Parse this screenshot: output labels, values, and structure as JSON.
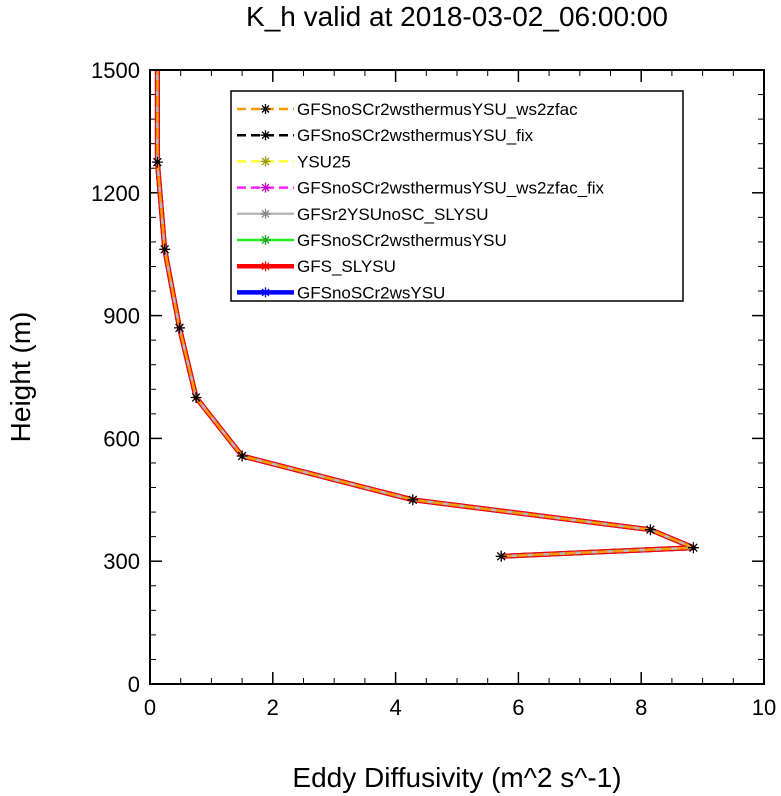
{
  "chart_data": {
    "type": "line",
    "title": "K_h valid at 2018-03-02_06:00:00",
    "xlabel": "Eddy Diffusivity (m^2 s^-1)",
    "ylabel": "Height (m)",
    "xlim": [
      0,
      10
    ],
    "ylim": [
      0,
      1500
    ],
    "xticks": [
      0,
      2,
      4,
      6,
      8,
      10
    ],
    "yticks": [
      0,
      300,
      600,
      900,
      1200,
      1500
    ],
    "xtick_labels": [
      "0",
      "2",
      "4",
      "6",
      "8",
      "10"
    ],
    "ytick_labels": [
      "0",
      "300",
      "600",
      "900",
      "1200",
      "1500"
    ],
    "legend_position": "top-right",
    "profile": {
      "x": [
        5.72,
        8.85,
        8.15,
        4.28,
        1.5,
        0.75,
        0.48,
        0.24,
        0.12,
        0.12
      ],
      "y": [
        312,
        333,
        377,
        450,
        557,
        700,
        870,
        1062,
        1275,
        1500
      ]
    },
    "series": [
      {
        "name": "GFSnoSCr2wsYSU",
        "color": "#0000ff",
        "width": 5,
        "dash": "",
        "marker_color": "#0000ff"
      },
      {
        "name": "GFS_SLYSU",
        "color": "#ff0000",
        "width": 5,
        "dash": "",
        "marker_color": "#ff0000"
      },
      {
        "name": "GFSnoSCr2wsthermusYSU",
        "color": "#22ee22",
        "width": 2.5,
        "dash": "",
        "marker_color": "#22aa22"
      },
      {
        "name": "GFSr2YSUnoSC_SLYSU",
        "color": "#bbbbbb",
        "width": 2.5,
        "dash": "",
        "marker_color": "#888888"
      },
      {
        "name": "GFSnoSCr2wsthermusYSU_ws2zfac_fix",
        "color": "#ff22ff",
        "width": 2.5,
        "dash": "10 6",
        "marker_color": "#cc00cc"
      },
      {
        "name": "YSU25",
        "color": "#ffff33",
        "width": 2.5,
        "dash": "10 6",
        "marker_color": "#999900"
      },
      {
        "name": "GFSnoSCr2wsthermusYSU_fix",
        "color": "#000000",
        "width": 2.5,
        "dash": "10 6",
        "marker_color": "#000000"
      },
      {
        "name": "GFSnoSCr2wsthermusYSU_ws2zfac",
        "color": "#ff9900",
        "width": 2.5,
        "dash": "10 6",
        "marker_color": "#000000"
      }
    ]
  }
}
